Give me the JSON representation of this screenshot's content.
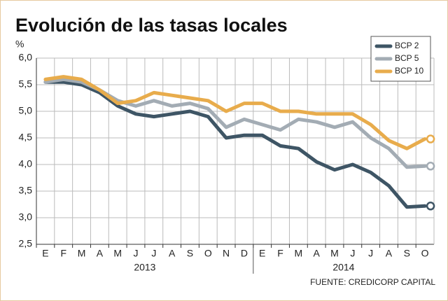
{
  "chart_data": {
    "type": "line",
    "title": "Evolución de las tasas locales",
    "y_label": "%",
    "source": "FUENTE: CREDICORP CAPITAL",
    "categories": [
      "E",
      "F",
      "M",
      "A",
      "M",
      "J",
      "J",
      "A",
      "S",
      "O",
      "N",
      "D",
      "E",
      "F",
      "M",
      "A",
      "M",
      "J",
      "J",
      "A",
      "S",
      "O"
    ],
    "x_groups": [
      "2013",
      "2014"
    ],
    "series": [
      {
        "name": "BCP 2",
        "color": "#3e5565",
        "values": [
          5.55,
          5.55,
          5.5,
          5.35,
          5.1,
          4.95,
          4.9,
          4.95,
          5.0,
          4.9,
          4.5,
          4.55,
          4.55,
          4.35,
          4.3,
          4.05,
          3.9,
          4.0,
          3.85,
          3.6,
          3.2,
          3.22
        ]
      },
      {
        "name": "BCP 5",
        "color": "#a3acb4",
        "values": [
          5.55,
          5.6,
          5.55,
          5.4,
          5.2,
          5.1,
          5.2,
          5.1,
          5.15,
          5.05,
          4.7,
          4.85,
          4.75,
          4.65,
          4.85,
          4.8,
          4.7,
          4.8,
          4.5,
          4.3,
          3.95,
          3.97
        ]
      },
      {
        "name": "BCP 10",
        "color": "#e8ac4c",
        "values": [
          5.6,
          5.65,
          5.6,
          5.4,
          5.15,
          5.2,
          5.35,
          5.3,
          5.25,
          5.2,
          5.0,
          5.15,
          5.15,
          5.0,
          5.0,
          4.95,
          4.95,
          4.95,
          4.75,
          4.45,
          4.3,
          4.48
        ]
      }
    ],
    "ylim": [
      2.5,
      6.0
    ],
    "yticks": [
      {
        "value": 2.5,
        "label": "2,5"
      },
      {
        "value": 3.0,
        "label": "3,0"
      },
      {
        "value": 3.5,
        "label": "3,5"
      },
      {
        "value": 4.0,
        "label": "4,0"
      },
      {
        "value": 4.5,
        "label": "4,5"
      },
      {
        "value": 5.0,
        "label": "5,0"
      },
      {
        "value": 5.5,
        "label": "5,5"
      },
      {
        "value": 6.0,
        "label": "6,0"
      }
    ],
    "grid": true,
    "legend": "top-right"
  }
}
